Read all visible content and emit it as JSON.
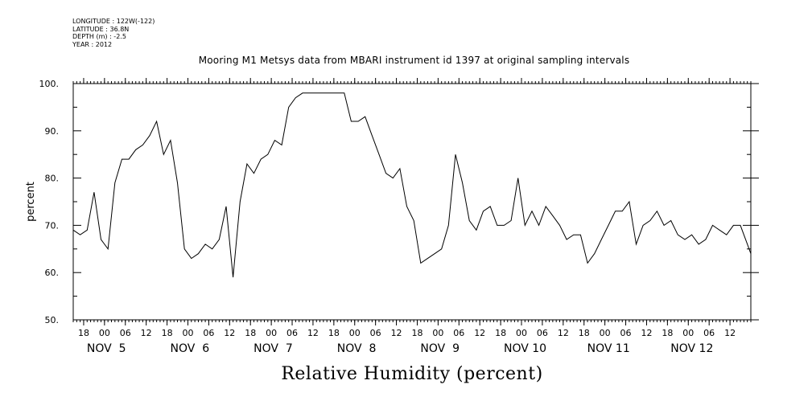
{
  "meta": {
    "longitude": "LONGITUDE : 122W(-122)",
    "latitude": "LATITUDE : 36.8N",
    "depth": "DEPTH (m) : -2.5",
    "year": "YEAR : 2012"
  },
  "chart_data": {
    "type": "line",
    "title": "Mooring M1 Metsys data from MBARI instrument id 1397 at original sampling intervals",
    "xlabel": "Relative Humidity (percent)",
    "ylabel": "percent",
    "ylim": [
      50,
      100
    ],
    "yticks": [
      "50.",
      "60.",
      "70.",
      "80.",
      "90.",
      "100."
    ],
    "hour_ticks": [
      "18",
      "00",
      "06",
      "12",
      "18",
      "00",
      "06",
      "12",
      "18",
      "00",
      "06",
      "12",
      "18",
      "00",
      "06",
      "12",
      "18",
      "00",
      "06",
      "12",
      "18",
      "00",
      "06",
      "12",
      "18",
      "00",
      "06",
      "12",
      "18",
      "00",
      "06",
      "12"
    ],
    "day_labels": [
      "NOV  5",
      "NOV  6",
      "NOV  7",
      "NOV  8",
      "NOV  9",
      "NOV 10",
      "NOV 11",
      "NOV 12"
    ],
    "x_range": [
      "2012-11-04 15:00",
      "2012-11-12 18:00"
    ],
    "series": [
      {
        "x_hours": [
          0,
          2,
          4,
          6,
          8,
          10,
          12,
          14,
          16,
          18,
          20,
          22,
          24,
          26,
          28,
          30,
          32,
          34,
          36,
          38,
          40,
          42,
          44,
          46,
          48,
          50,
          52,
          54,
          56,
          58,
          60,
          62,
          64,
          66,
          68,
          70,
          72,
          74,
          76,
          78,
          80,
          82,
          84,
          86,
          88,
          90,
          92,
          94,
          96,
          98,
          100,
          102,
          104,
          106,
          108,
          110,
          112,
          114,
          116,
          118,
          120,
          122,
          124,
          126,
          128,
          130,
          132,
          134,
          136,
          138,
          140,
          142,
          144,
          146,
          148,
          150,
          152,
          154,
          156,
          158,
          160,
          162,
          164,
          166,
          168,
          170,
          172,
          174,
          176,
          178,
          180,
          182,
          184,
          186,
          188,
          190,
          192,
          194,
          195
        ],
        "values": [
          69,
          68,
          69,
          77,
          67,
          65,
          79,
          84,
          84,
          86,
          87,
          89,
          92,
          85,
          88,
          79,
          65,
          63,
          64,
          66,
          65,
          67,
          74,
          59,
          75,
          83,
          81,
          84,
          85,
          88,
          87,
          95,
          97,
          98,
          98,
          98,
          98,
          98,
          98,
          98,
          92,
          92,
          93,
          89,
          85,
          81,
          80,
          82,
          74,
          71,
          62,
          63,
          64,
          65,
          70,
          85,
          79,
          71,
          69,
          73,
          74,
          70,
          70,
          71,
          80,
          70,
          73,
          70,
          74,
          72,
          70,
          67,
          68,
          68,
          62,
          64,
          67,
          70,
          73,
          73,
          75,
          66,
          70,
          71,
          73,
          70,
          71,
          68,
          67,
          68,
          66,
          67,
          70,
          69,
          68,
          70,
          70,
          66,
          64
        ]
      }
    ]
  },
  "colors": {
    "line": "#000000",
    "axis": "#000000",
    "background": "#ffffff"
  }
}
